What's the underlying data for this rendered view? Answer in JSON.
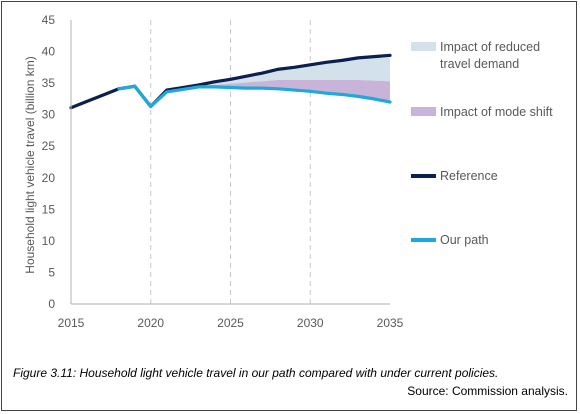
{
  "caption": "Figure 3.11: Household light vehicle travel in our path compared with under current policies.",
  "source": "Source: Commission analysis.",
  "chart_data": {
    "type": "line",
    "title": "",
    "xlabel": "",
    "ylabel": "Household light vehicle travel (billion km)",
    "xlim": [
      2015,
      2035
    ],
    "ylim": [
      0,
      45
    ],
    "xticks": [
      2015,
      2020,
      2025,
      2030,
      2035
    ],
    "yticks": [
      0,
      5,
      10,
      15,
      20,
      25,
      30,
      35,
      40,
      45
    ],
    "vertical_gridlines": "dashed",
    "legend_position": "right",
    "series": [
      {
        "name": "Reference",
        "color": "#0d1f4e",
        "x": [
          2015,
          2016,
          2017,
          2018,
          2019,
          2020,
          2021,
          2022,
          2023,
          2024,
          2025,
          2026,
          2027,
          2028,
          2029,
          2030,
          2031,
          2032,
          2033,
          2034,
          2035
        ],
        "y": [
          31.1,
          32.1,
          33.1,
          34.1,
          34.5,
          31.3,
          33.9,
          34.3,
          34.7,
          35.2,
          35.6,
          36.1,
          36.6,
          37.2,
          37.5,
          37.9,
          38.3,
          38.6,
          39.0,
          39.2,
          39.4
        ]
      },
      {
        "name": "Our path",
        "color": "#1fa8d8",
        "x": [
          2018,
          2019,
          2020,
          2021,
          2022,
          2023,
          2024,
          2025,
          2026,
          2027,
          2028,
          2029,
          2030,
          2031,
          2032,
          2033,
          2034,
          2035
        ],
        "y": [
          34.1,
          34.5,
          31.3,
          33.6,
          34.0,
          34.4,
          34.4,
          34.3,
          34.2,
          34.2,
          34.1,
          33.9,
          33.7,
          33.4,
          33.2,
          32.9,
          32.5,
          32.0
        ]
      }
    ],
    "bands": [
      {
        "name": "Impact of reduced travel demand",
        "color": "#d2e1ea",
        "x": [
          2023,
          2024,
          2025,
          2026,
          2027,
          2028,
          2029,
          2030,
          2031,
          2032,
          2033,
          2034,
          2035
        ],
        "lower": [
          34.5,
          34.7,
          34.9,
          35.1,
          35.3,
          35.5,
          35.5,
          35.5,
          35.5,
          35.5,
          35.5,
          35.4,
          35.3
        ],
        "upper": [
          34.7,
          35.2,
          35.6,
          36.1,
          36.6,
          37.2,
          37.5,
          37.9,
          38.3,
          38.6,
          39.0,
          39.2,
          39.4
        ]
      },
      {
        "name": "Impact of mode shift",
        "color": "#c9b4d9",
        "x": [
          2023,
          2024,
          2025,
          2026,
          2027,
          2028,
          2029,
          2030,
          2031,
          2032,
          2033,
          2034,
          2035
        ],
        "lower": [
          34.4,
          34.4,
          34.3,
          34.2,
          34.2,
          34.1,
          33.9,
          33.7,
          33.4,
          33.2,
          32.9,
          32.5,
          32.0
        ],
        "upper": [
          34.5,
          34.7,
          34.9,
          35.1,
          35.3,
          35.5,
          35.5,
          35.5,
          35.5,
          35.5,
          35.5,
          35.4,
          35.3
        ]
      }
    ],
    "legend": [
      {
        "label": "Impact of reduced travel demand",
        "label_lines": [
          "Impact of reduced",
          "travel demand"
        ],
        "kind": "box",
        "color": "#d2e1ea"
      },
      {
        "label": "Impact of mode shift",
        "label_lines": [
          "Impact of mode shift"
        ],
        "kind": "box",
        "color": "#c9b4d9"
      },
      {
        "label": "Reference",
        "label_lines": [
          "Reference"
        ],
        "kind": "line",
        "color": "#0d1f4e"
      },
      {
        "label": "Our path",
        "label_lines": [
          "Our path"
        ],
        "kind": "line",
        "color": "#1fa8d8"
      }
    ]
  }
}
